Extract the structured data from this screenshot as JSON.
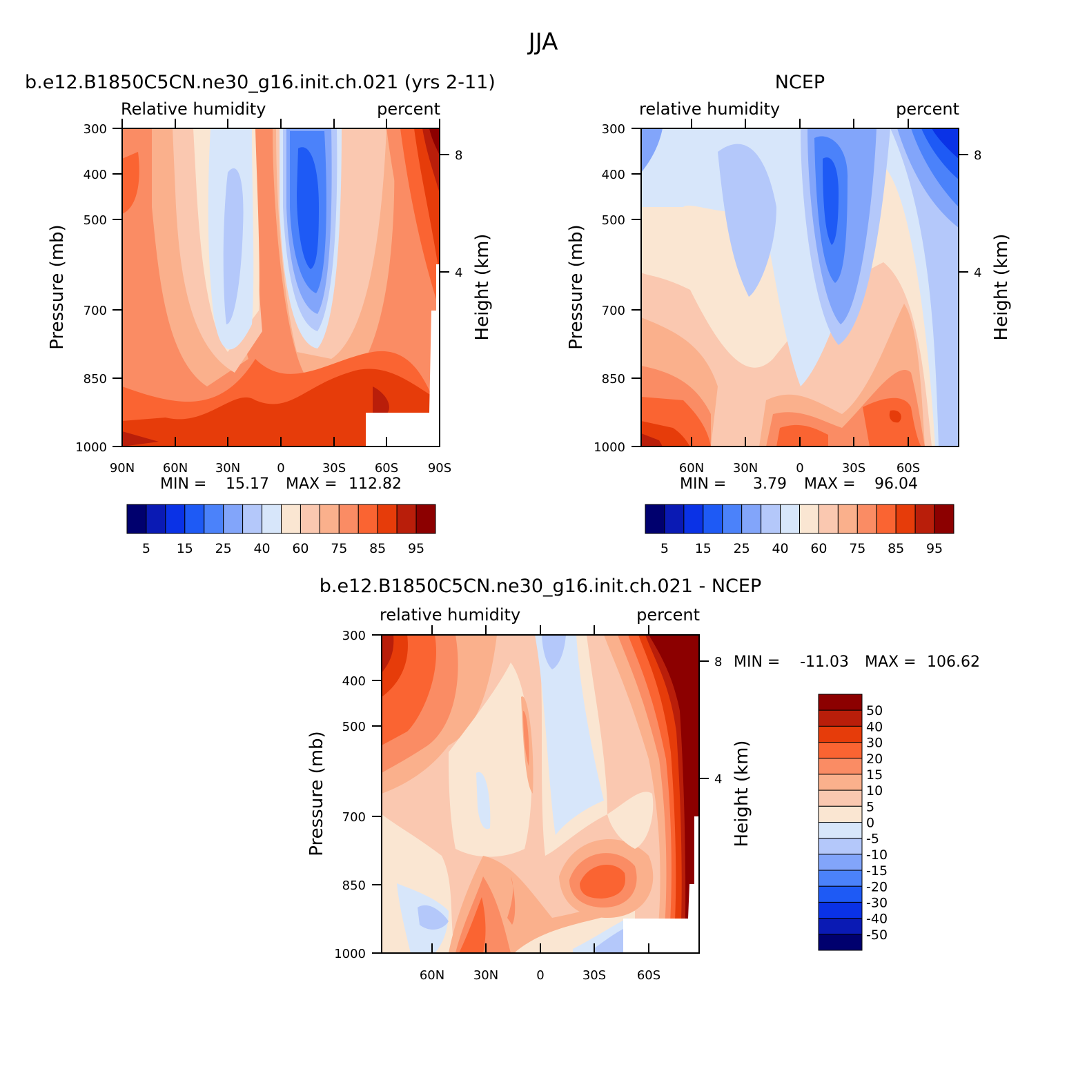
{
  "figure": {
    "title": "JJA"
  },
  "chart_data": [
    {
      "id": "model",
      "type": "contour",
      "title": "b.e12.B1850C5CN.ne30_g16.init.ch.021 (yrs 2-11)",
      "variable": "Relative humidity",
      "units": "percent",
      "ylabel": "Pressure (mb)",
      "ylabel_right": "Height (km)",
      "yticks": [
        "300",
        "400",
        "500",
        "700",
        "850",
        "1000"
      ],
      "height_ticks": [
        "8",
        "4"
      ],
      "xticks": [
        "90N",
        "60N",
        "30N",
        "0",
        "30S",
        "60S",
        "90S"
      ],
      "stats": {
        "min_label": "MIN =",
        "min": "15.17",
        "max_label": "MAX =",
        "max": "112.82"
      },
      "colorbar_labels": [
        "5",
        "15",
        "25",
        "40",
        "60",
        "75",
        "85",
        "95"
      ],
      "description": "RH cross-section: blue minimum (~15-30%) near equator-30S at 400-600 mb; high RH (80-100%) near surface and at high southern latitudes"
    },
    {
      "id": "obs",
      "type": "contour",
      "title": "NCEP",
      "variable": "relative humidity",
      "units": "percent",
      "ylabel": "Pressure (mb)",
      "ylabel_right": "Height (km)",
      "yticks": [
        "300",
        "400",
        "500",
        "700",
        "850",
        "1000"
      ],
      "height_ticks": [
        "8",
        "4"
      ],
      "xticks": [
        "60N",
        "30N",
        "0",
        "30S",
        "60S"
      ],
      "stats": {
        "min_label": "MIN =",
        "min": "3.79",
        "max_label": "MAX =",
        "max": "96.04"
      },
      "colorbar_labels": [
        "5",
        "15",
        "25",
        "40",
        "60",
        "75",
        "85",
        "95"
      ],
      "description": "Observed RH: minimum near 20S at 400-600 mb, dry upper levels over southern high latitudes"
    },
    {
      "id": "diff",
      "type": "contour",
      "title": "b.e12.B1850C5CN.ne30_g16.init.ch.021 - NCEP",
      "variable": "relative humidity",
      "units": "percent",
      "ylabel": "Pressure (mb)",
      "ylabel_right": "Height (km)",
      "yticks": [
        "300",
        "400",
        "500",
        "700",
        "850",
        "1000"
      ],
      "height_ticks": [
        "8",
        "4"
      ],
      "xticks": [
        "60N",
        "30N",
        "0",
        "30S",
        "60S"
      ],
      "stats": {
        "min_label": "MIN =",
        "min": "-11.03",
        "max_label": "MAX =",
        "max": "106.62"
      },
      "colorbar_labels": [
        "50",
        "40",
        "30",
        "20",
        "15",
        "10",
        "5",
        "0",
        "-5",
        "-10",
        "-15",
        "-20",
        "-30",
        "-40",
        "-50"
      ],
      "description": "Difference: large positive biases (model too moist) at high southern latitudes and northern upper levels; small negative near equator"
    }
  ],
  "palette": [
    "#00006e",
    "#0a1ab4",
    "#0a32e6",
    "#1e5af5",
    "#4b82fa",
    "#82a5fa",
    "#b4c8fa",
    "#d7e6fa",
    "#fae6d2",
    "#fac8b0",
    "#fab08c",
    "#fa8c64",
    "#fa6432",
    "#e63c0a",
    "#b91e0a",
    "#8c0000"
  ]
}
